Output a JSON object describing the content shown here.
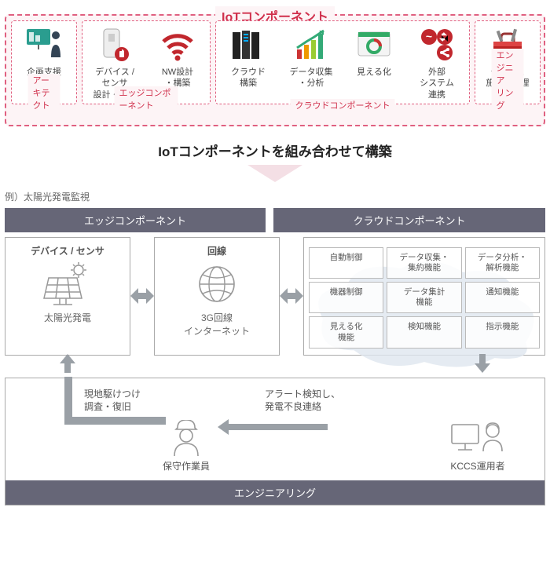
{
  "colors": {
    "accent_red": "#d0304c",
    "dash_red": "#e06080",
    "panel_bg": "#fdf4f6",
    "hdr_bg": "#5c5c70",
    "hdr_fg": "#ffffff",
    "border": "#a8a8a8",
    "text": "#444444",
    "muted": "#666666",
    "arrow": "#9aa0a6"
  },
  "iot": {
    "title": "IoTコンポーネント",
    "groups": [
      {
        "label": "アーキテクト",
        "components": [
          {
            "icon": "presentation-icon",
            "label": "企画支援"
          }
        ]
      },
      {
        "label": "エッジコンポーネント",
        "components": [
          {
            "icon": "sensor-icon",
            "label": "デバイス /\nセンサ\n設計・作成"
          },
          {
            "icon": "wifi-icon",
            "label": "NW設計\n・構築"
          }
        ]
      },
      {
        "label": "クラウドコンポーネント",
        "components": [
          {
            "icon": "servers-icon",
            "label": "クラウド\n構築"
          },
          {
            "icon": "chart-icon",
            "label": "データ収集\n・分析"
          },
          {
            "icon": "dashboard-icon",
            "label": "見える化"
          },
          {
            "icon": "connect-icon",
            "label": "外部\nシステム\n連携"
          }
        ]
      },
      {
        "label": "エンジニア\nリング",
        "components": [
          {
            "icon": "toolbox-icon",
            "label": "デバイス\n施工・管理"
          }
        ]
      }
    ]
  },
  "tagline": "IoTコンポーネントを組み合わせて構築",
  "example": {
    "caption": "例）太陽光発電監視",
    "edge_hdr": "エッジコンポーネント",
    "cloud_hdr": "クラウドコンポーネント",
    "device": {
      "title": "デバイス / センサ",
      "label": "太陽光発電",
      "icon": "solar-icon"
    },
    "line": {
      "title": "回線",
      "label": "3G回線\nインターネット",
      "icon": "globe-icon"
    },
    "features": [
      "自動制御",
      "データ収集・\n集約機能",
      "データ分析・\n解析機能",
      "機器制御",
      "データ集計\n機能",
      "通知機能",
      "見える化\n機能",
      "検知機能",
      "指示機能"
    ]
  },
  "engineering": {
    "worker": {
      "label": "保守作業員",
      "icon": "worker-icon"
    },
    "operator": {
      "label": "KCCS運用者",
      "icon": "operator-icon"
    },
    "note_left": "現地駆けつけ\n調査・復旧",
    "note_right": "アラート検知し、\n発電不良連絡",
    "footer": "エンジニアリング"
  }
}
